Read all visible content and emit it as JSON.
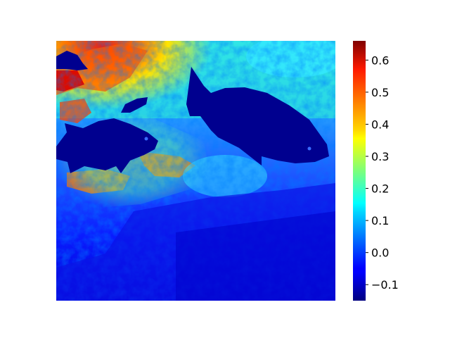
{
  "chart_data": {
    "type": "heatmap",
    "title": "",
    "xlabel": "",
    "ylabel": "",
    "colormap": "jet",
    "axes_visible": false,
    "colorbar": {
      "location": "right",
      "vmin": -0.15,
      "vmax": 0.66,
      "ticks": [
        -0.1,
        0.0,
        0.1,
        0.2,
        0.3,
        0.4,
        0.5,
        0.6
      ],
      "tick_labels": [
        "−0.1",
        "0.0",
        "0.1",
        "0.2",
        "0.3",
        "0.4",
        "0.5",
        "0.6"
      ]
    },
    "image_content": "jet-colored saliency map of an underwater scene with three fish silhouettes"
  }
}
